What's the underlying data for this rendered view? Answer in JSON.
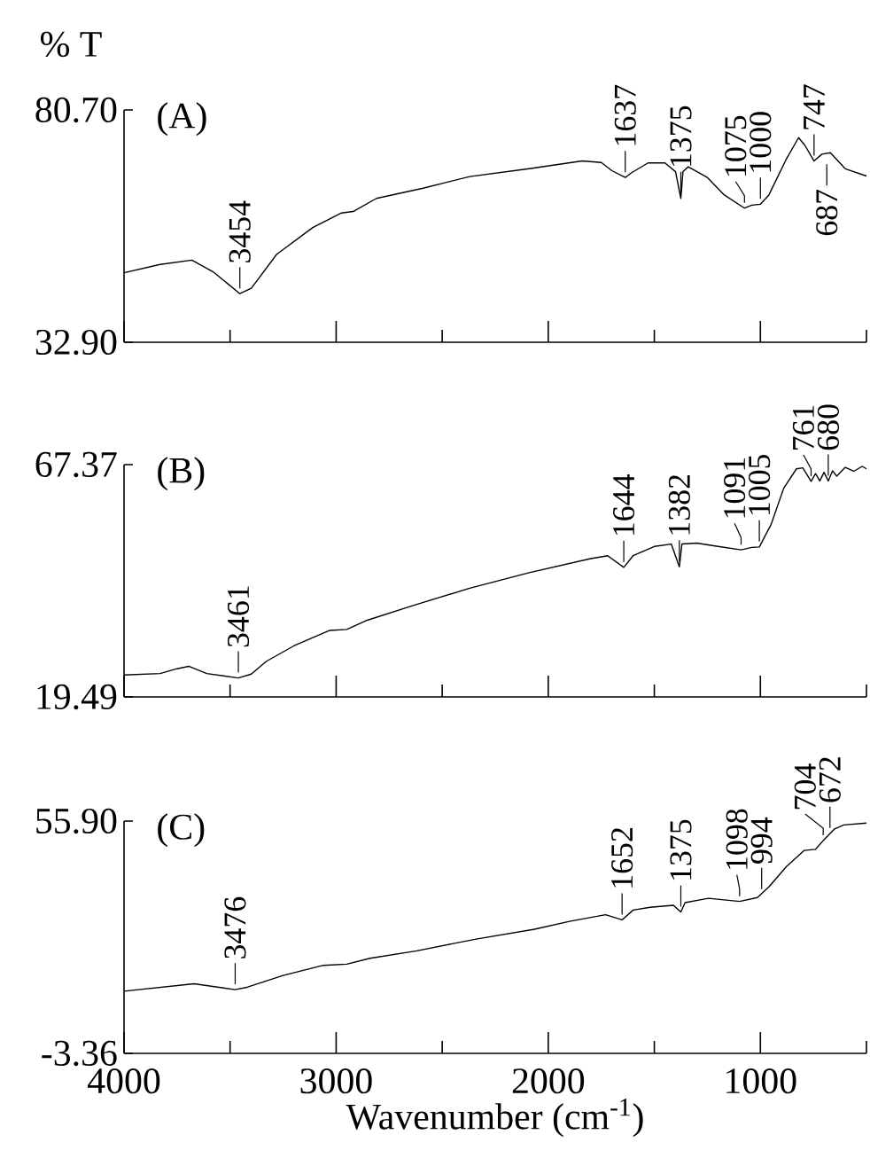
{
  "chart_data": [
    {
      "type": "line",
      "title": "(A)",
      "ylabel": "% T",
      "color": "#000000",
      "marker": "none",
      "line_style": "solid",
      "tick_labels": "y",
      "xlim": [
        4000,
        500
      ],
      "ylim": [
        32.9,
        80.7
      ],
      "xticks": [
        4000,
        {
          "value": 3500,
          "label": null
        },
        3000,
        {
          "value": 2500,
          "label": null
        },
        2000,
        {
          "value": 1500,
          "label": null
        },
        1000,
        {
          "value": 500,
          "label": null
        }
      ],
      "yticks": [
        {
          "value": 32.9,
          "label": "32.90"
        },
        {
          "value": 80.7,
          "label": "80.70"
        }
      ],
      "x": [
        4000,
        3830,
        3680,
        3580,
        3454,
        3400,
        3280,
        3110,
        2975,
        2920,
        2810,
        2590,
        2370,
        2090,
        1840,
        1750,
        1700,
        1637,
        1610,
        1530,
        1450,
        1400,
        1375,
        1365,
        1340,
        1250,
        1170,
        1075,
        1040,
        1000,
        960,
        880,
        820,
        790,
        747,
        710,
        670,
        600,
        500
      ],
      "values": [
        47.2,
        48.9,
        49.8,
        47.4,
        42.9,
        44.0,
        51.0,
        56.5,
        59.5,
        59.8,
        62.5,
        64.6,
        67.0,
        68.6,
        70.2,
        69.9,
        68.2,
        66.8,
        67.7,
        69.8,
        69.8,
        68.0,
        62.5,
        68.0,
        69.0,
        66.8,
        63.2,
        60.5,
        61.1,
        61.3,
        63.2,
        70.4,
        75.0,
        73.4,
        70.2,
        71.6,
        71.9,
        68.6,
        67.1
      ],
      "annotations": [
        {
          "text": "3454",
          "x": 3454,
          "y": 42.9
        },
        {
          "text": "1637",
          "x": 1637,
          "y": 66.8
        },
        {
          "text": "1375",
          "x": 1375,
          "y": 62.5
        },
        {
          "text": "1075",
          "x": 1075,
          "y": 60.5
        },
        {
          "text": "1000",
          "x": 1000,
          "y": 61.3
        },
        {
          "text": "747",
          "x": 747,
          "y": 70.2
        },
        {
          "text": "687",
          "x": 687,
          "y": 70.6
        }
      ]
    },
    {
      "type": "line",
      "title": "(B)",
      "color": "#000000",
      "marker": "none",
      "line_style": "solid",
      "tick_labels": "y",
      "xlim": [
        4000,
        500
      ],
      "ylim": [
        19.49,
        67.37
      ],
      "xticks": [
        4000,
        {
          "value": 3500,
          "label": null
        },
        3000,
        {
          "value": 2500,
          "label": null
        },
        2000,
        {
          "value": 1500,
          "label": null
        },
        1000,
        {
          "value": 500,
          "label": null
        }
      ],
      "yticks": [
        {
          "value": 19.49,
          "label": "19.49"
        },
        {
          "value": 67.37,
          "label": "67.37"
        }
      ],
      "x": [
        4000,
        3830,
        3750,
        3695,
        3610,
        3461,
        3400,
        3330,
        3200,
        3030,
        2950,
        2860,
        2640,
        2370,
        2090,
        1800,
        1720,
        1644,
        1600,
        1500,
        1420,
        1382,
        1370,
        1300,
        1200,
        1091,
        1040,
        1005,
        950,
        890,
        830,
        800,
        761,
        740,
        720,
        700,
        680,
        660,
        640,
        600,
        560,
        520,
        500
      ],
      "values": [
        24.0,
        24.3,
        25.3,
        25.8,
        24.3,
        23.4,
        24.2,
        26.8,
        30.0,
        33.2,
        33.4,
        35.2,
        38.3,
        41.9,
        45.1,
        48.0,
        48.6,
        46.2,
        48.6,
        50.5,
        51.0,
        46.3,
        51.0,
        51.2,
        50.5,
        49.8,
        50.3,
        50.4,
        55.0,
        62.5,
        66.5,
        66.7,
        63.9,
        65.5,
        64.0,
        65.8,
        64.0,
        66.1,
        65.0,
        66.8,
        66.0,
        67.0,
        66.5
      ],
      "annotations": [
        {
          "text": "3461",
          "x": 3461,
          "y": 23.4
        },
        {
          "text": "1644",
          "x": 1644,
          "y": 46.2
        },
        {
          "text": "1382",
          "x": 1382,
          "y": 46.3
        },
        {
          "text": "1091",
          "x": 1091,
          "y": 49.8
        },
        {
          "text": "1005",
          "x": 1005,
          "y": 50.4
        },
        {
          "text": "761",
          "x": 761,
          "y": 63.9
        },
        {
          "text": "680",
          "x": 680,
          "y": 64.0
        }
      ]
    },
    {
      "type": "line",
      "title": "(C)",
      "xlabel": "Wavenumber (cm$^{-1}$)",
      "color": "#000000",
      "marker": "none",
      "line_style": "solid",
      "xlim": [
        4000,
        500
      ],
      "ylim": [
        -3.36,
        55.9
      ],
      "xticks": [
        4000,
        {
          "value": 3500,
          "label": null
        },
        3000,
        {
          "value": 2500,
          "label": null
        },
        2000,
        {
          "value": 1500,
          "label": null
        },
        1000,
        {
          "value": 500,
          "label": null
        }
      ],
      "yticks": [
        {
          "value": -3.36,
          "label": "-3.36"
        },
        {
          "value": 55.9,
          "label": "55.90"
        }
      ],
      "x": [
        4000,
        3670,
        3476,
        3420,
        3250,
        3060,
        2950,
        2840,
        2620,
        2340,
        2065,
        1900,
        1730,
        1652,
        1600,
        1520,
        1410,
        1375,
        1355,
        1245,
        1098,
        1014,
        960,
        877,
        794,
        740,
        704,
        650,
        607,
        500
      ],
      "values": [
        12.5,
        14.4,
        12.9,
        13.5,
        16.5,
        19.1,
        19.4,
        20.9,
        22.8,
        25.8,
        28.3,
        30.3,
        32.0,
        30.7,
        33.2,
        33.9,
        34.4,
        32.7,
        35.1,
        36.2,
        35.4,
        36.4,
        39.1,
        44.3,
        48.4,
        48.7,
        50.9,
        53.9,
        54.9,
        55.4
      ],
      "annotations": [
        {
          "text": "3476",
          "x": 3476,
          "y": 12.9
        },
        {
          "text": "1652",
          "x": 1652,
          "y": 30.7
        },
        {
          "text": "1375",
          "x": 1375,
          "y": 32.7
        },
        {
          "text": "1098",
          "x": 1098,
          "y": 35.4
        },
        {
          "text": "994",
          "x": 994,
          "y": 37.2
        },
        {
          "text": "704",
          "x": 704,
          "y": 50.9
        },
        {
          "text": "672",
          "x": 672,
          "y": 52.8
        }
      ]
    }
  ]
}
